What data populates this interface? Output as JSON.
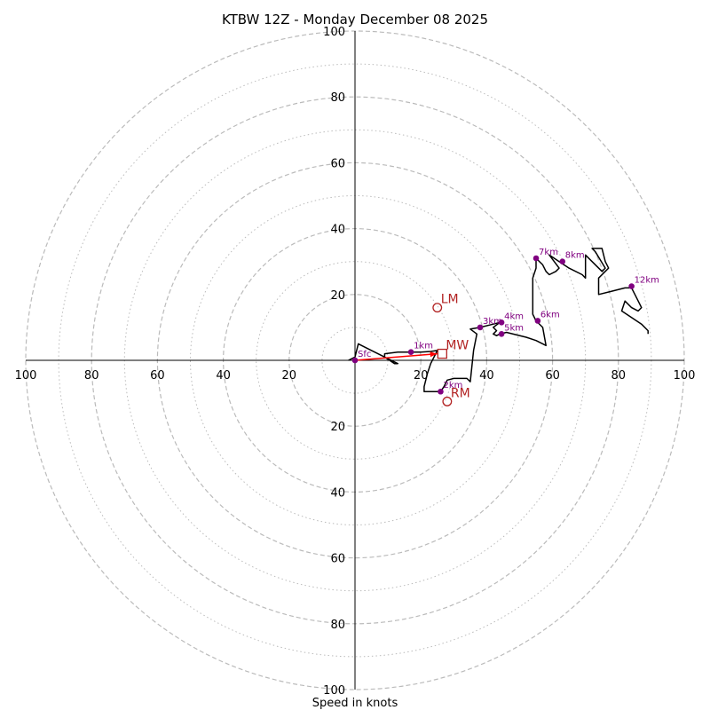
{
  "chart_data": {
    "type": "hodograph",
    "title": "KTBW 12Z - Monday December 08 2025",
    "xlabel": "Speed in knots",
    "units": "knots",
    "range": [
      -100,
      100
    ],
    "ring_major": [
      20,
      40,
      60,
      80,
      100
    ],
    "ring_minor": [
      10,
      30,
      50,
      70,
      90
    ],
    "x_tick_labels": [
      "100",
      "80",
      "60",
      "40",
      "20",
      "20",
      "40",
      "60",
      "80",
      "100"
    ],
    "x_tick_values": [
      -100,
      -80,
      -60,
      -40,
      -20,
      20,
      40,
      60,
      80,
      100
    ],
    "y_tick_labels": [
      "100",
      "80",
      "60",
      "40",
      "20",
      "20",
      "40",
      "60",
      "80",
      "100"
    ],
    "y_tick_values": [
      100,
      80,
      60,
      40,
      20,
      -20,
      -40,
      -60,
      -80,
      -100
    ],
    "colors": {
      "trace": "#000000",
      "marker": "#800080",
      "shear": "#ff0000",
      "motion": "#b22222",
      "ring": "#bbbbbb",
      "axis": "#000000"
    },
    "trace": [
      [
        -2,
        0
      ],
      [
        0,
        1
      ],
      [
        1,
        5
      ],
      [
        5,
        3
      ],
      [
        9,
        1
      ],
      [
        13,
        -1
      ],
      [
        12,
        -1
      ],
      [
        9,
        1
      ],
      [
        9,
        2
      ],
      [
        13,
        2.5
      ],
      [
        17,
        2.5
      ],
      [
        20,
        2.5
      ],
      [
        23,
        2.7
      ],
      [
        25,
        3
      ],
      [
        23,
        -1
      ],
      [
        22,
        -4
      ],
      [
        21,
        -8
      ],
      [
        21,
        -9.5
      ],
      [
        24,
        -9.5
      ],
      [
        26,
        -9.5
      ],
      [
        27,
        -8
      ],
      [
        28,
        -6
      ],
      [
        30,
        -5.5
      ],
      [
        34,
        -5.5
      ],
      [
        35,
        -6.5
      ],
      [
        36,
        3
      ],
      [
        37,
        8
      ],
      [
        35,
        9.5
      ],
      [
        38,
        10
      ],
      [
        42,
        11
      ],
      [
        44,
        11.5
      ],
      [
        42,
        10
      ],
      [
        43,
        9
      ],
      [
        42,
        8
      ],
      [
        43,
        7.5
      ],
      [
        44,
        8
      ],
      [
        46,
        8.5
      ],
      [
        52,
        7
      ],
      [
        55,
        6
      ],
      [
        57,
        5
      ],
      [
        58,
        4.5
      ],
      [
        57,
        10
      ],
      [
        55,
        12
      ],
      [
        54,
        14
      ],
      [
        54,
        20
      ],
      [
        54,
        25
      ],
      [
        55,
        28
      ],
      [
        55,
        31
      ],
      [
        57,
        29
      ],
      [
        58,
        27
      ],
      [
        59,
        26
      ],
      [
        61,
        27
      ],
      [
        62,
        28
      ],
      [
        59,
        32
      ],
      [
        62,
        30
      ],
      [
        65,
        28
      ],
      [
        69,
        26
      ],
      [
        70,
        25
      ],
      [
        70,
        32
      ],
      [
        72,
        30
      ],
      [
        75,
        27
      ],
      [
        76,
        28
      ],
      [
        73,
        33
      ],
      [
        72,
        34
      ],
      [
        75,
        34
      ],
      [
        76,
        30
      ],
      [
        77,
        28
      ],
      [
        76,
        27
      ],
      [
        74,
        25
      ],
      [
        74,
        20
      ],
      [
        78,
        21
      ],
      [
        82,
        22
      ],
      [
        84,
        22
      ],
      [
        85,
        20
      ],
      [
        86,
        18
      ],
      [
        87,
        16
      ],
      [
        86,
        15
      ],
      [
        84,
        16
      ],
      [
        82,
        18
      ],
      [
        81,
        15
      ],
      [
        84,
        13
      ],
      [
        87,
        11
      ],
      [
        89,
        9
      ],
      [
        89,
        8
      ]
    ],
    "height_markers": [
      {
        "label": "Sfc",
        "u": 0,
        "v": 0
      },
      {
        "label": "1km",
        "u": 17,
        "v": 2.5
      },
      {
        "label": "2km",
        "u": 26,
        "v": -9.5
      },
      {
        "label": "3km",
        "u": 38,
        "v": 10
      },
      {
        "label": "4km",
        "u": 44.5,
        "v": 11.5
      },
      {
        "label": "5km",
        "u": 44.5,
        "v": 8
      },
      {
        "label": "6km",
        "u": 55.5,
        "v": 12
      },
      {
        "label": "7km",
        "u": 55,
        "v": 31
      },
      {
        "label": "8km",
        "u": 63,
        "v": 30
      },
      {
        "label": "12km",
        "u": 84,
        "v": 22.5
      }
    ],
    "shear_vector": {
      "from": [
        0,
        0
      ],
      "to": [
        25,
        2
      ]
    },
    "storm_motion": [
      {
        "label": "MW",
        "u": 26.5,
        "v": 2,
        "marker": "square"
      },
      {
        "label": "LM",
        "u": 25,
        "v": 16,
        "marker": "circle"
      },
      {
        "label": "RM",
        "u": 28,
        "v": -12.5,
        "marker": "circle"
      }
    ]
  }
}
